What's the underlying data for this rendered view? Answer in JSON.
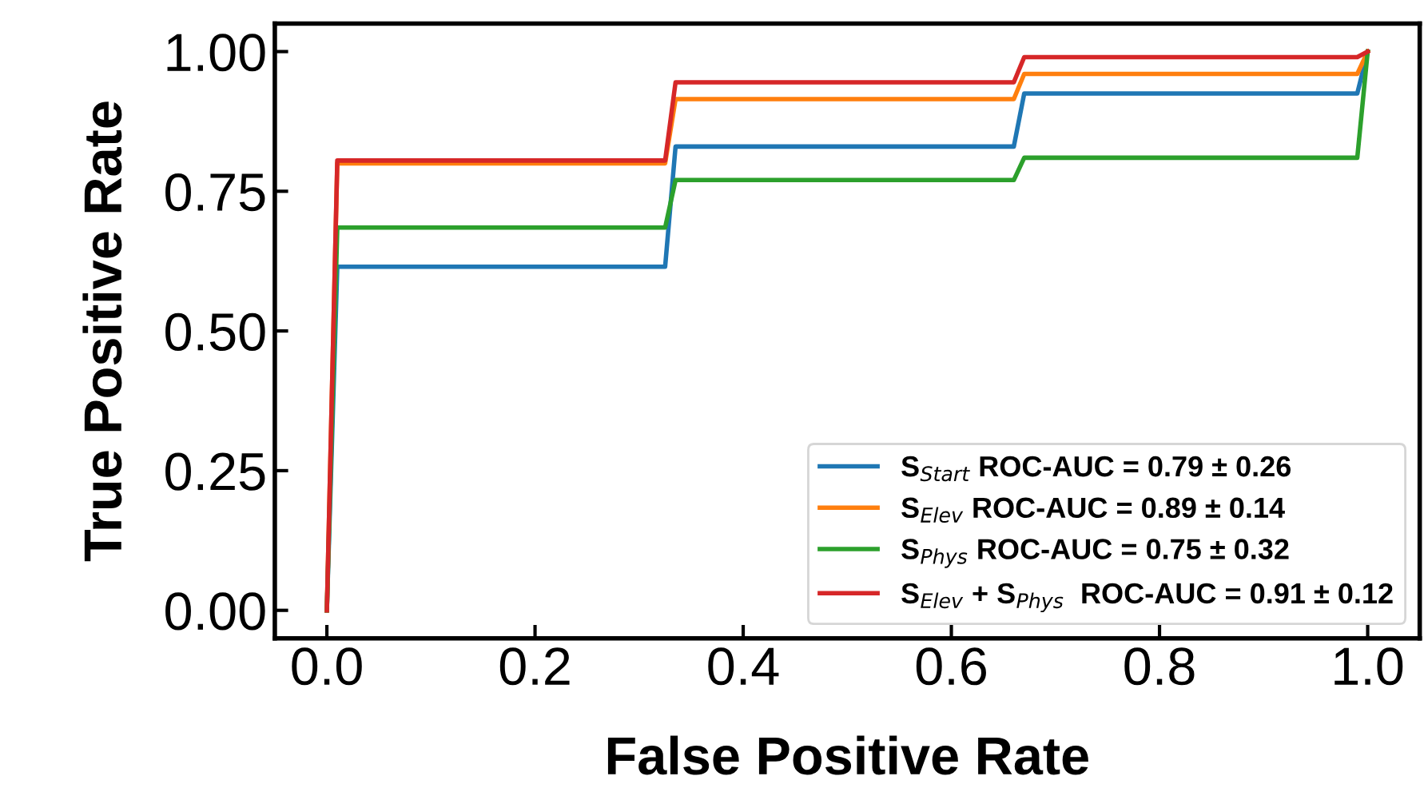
{
  "chart_data": {
    "type": "line",
    "xlabel": "False Positive Rate",
    "ylabel": "True Positive Rate",
    "xlim": [
      -0.05,
      1.05
    ],
    "ylim": [
      -0.05,
      1.05
    ],
    "xticks": [
      {
        "value": 0,
        "label": "0.0"
      },
      0.2,
      0.4,
      0.6,
      0.8,
      {
        "value": 1,
        "label": "1.0"
      }
    ],
    "yticks": [
      {
        "value": 0,
        "label": "0.00"
      },
      0.25,
      {
        "value": 0.5,
        "label": "0.50"
      },
      0.75,
      {
        "value": 1,
        "label": "1.00"
      }
    ],
    "grid": false,
    "legend": "bottom right",
    "marker": "none",
    "line_style": "solid",
    "series": [
      {
        "name": "S$_{Start}$ ROC-AUC = 0.79 ± 0.26",
        "color": "#1f77b4",
        "x": [
          0,
          0.01,
          0.325,
          0.335,
          0.66,
          0.67,
          0.99,
          1.0
        ],
        "values": [
          0,
          0.615,
          0.615,
          0.83,
          0.83,
          0.925,
          0.925,
          1.0
        ]
      },
      {
        "name": "S$_{Elev}$ ROC-AUC = 0.89 ± 0.14",
        "color": "#ff7f0e",
        "x": [
          0,
          0.01,
          0.325,
          0.335,
          0.66,
          0.67,
          0.99,
          1.0
        ],
        "values": [
          0,
          0.8,
          0.8,
          0.915,
          0.915,
          0.96,
          0.96,
          1.0
        ]
      },
      {
        "name": "S$_{Phys}$ ROC-AUC = 0.75 ± 0.32",
        "color": "#2ca02c",
        "x": [
          0,
          0.01,
          0.325,
          0.335,
          0.66,
          0.67,
          0.99,
          1.0
        ],
        "values": [
          0,
          0.685,
          0.685,
          0.77,
          0.77,
          0.81,
          0.81,
          1.0
        ]
      },
      {
        "name": "S$_{Elev}$ + S$_{Phys}$  ROC-AUC = 0.91 ± 0.12",
        "color": "#d62728",
        "x": [
          0,
          0.01,
          0.325,
          0.335,
          0.66,
          0.67,
          0.99,
          1.0
        ],
        "values": [
          0,
          0.805,
          0.805,
          0.945,
          0.945,
          0.99,
          0.99,
          1.0
        ]
      }
    ]
  }
}
